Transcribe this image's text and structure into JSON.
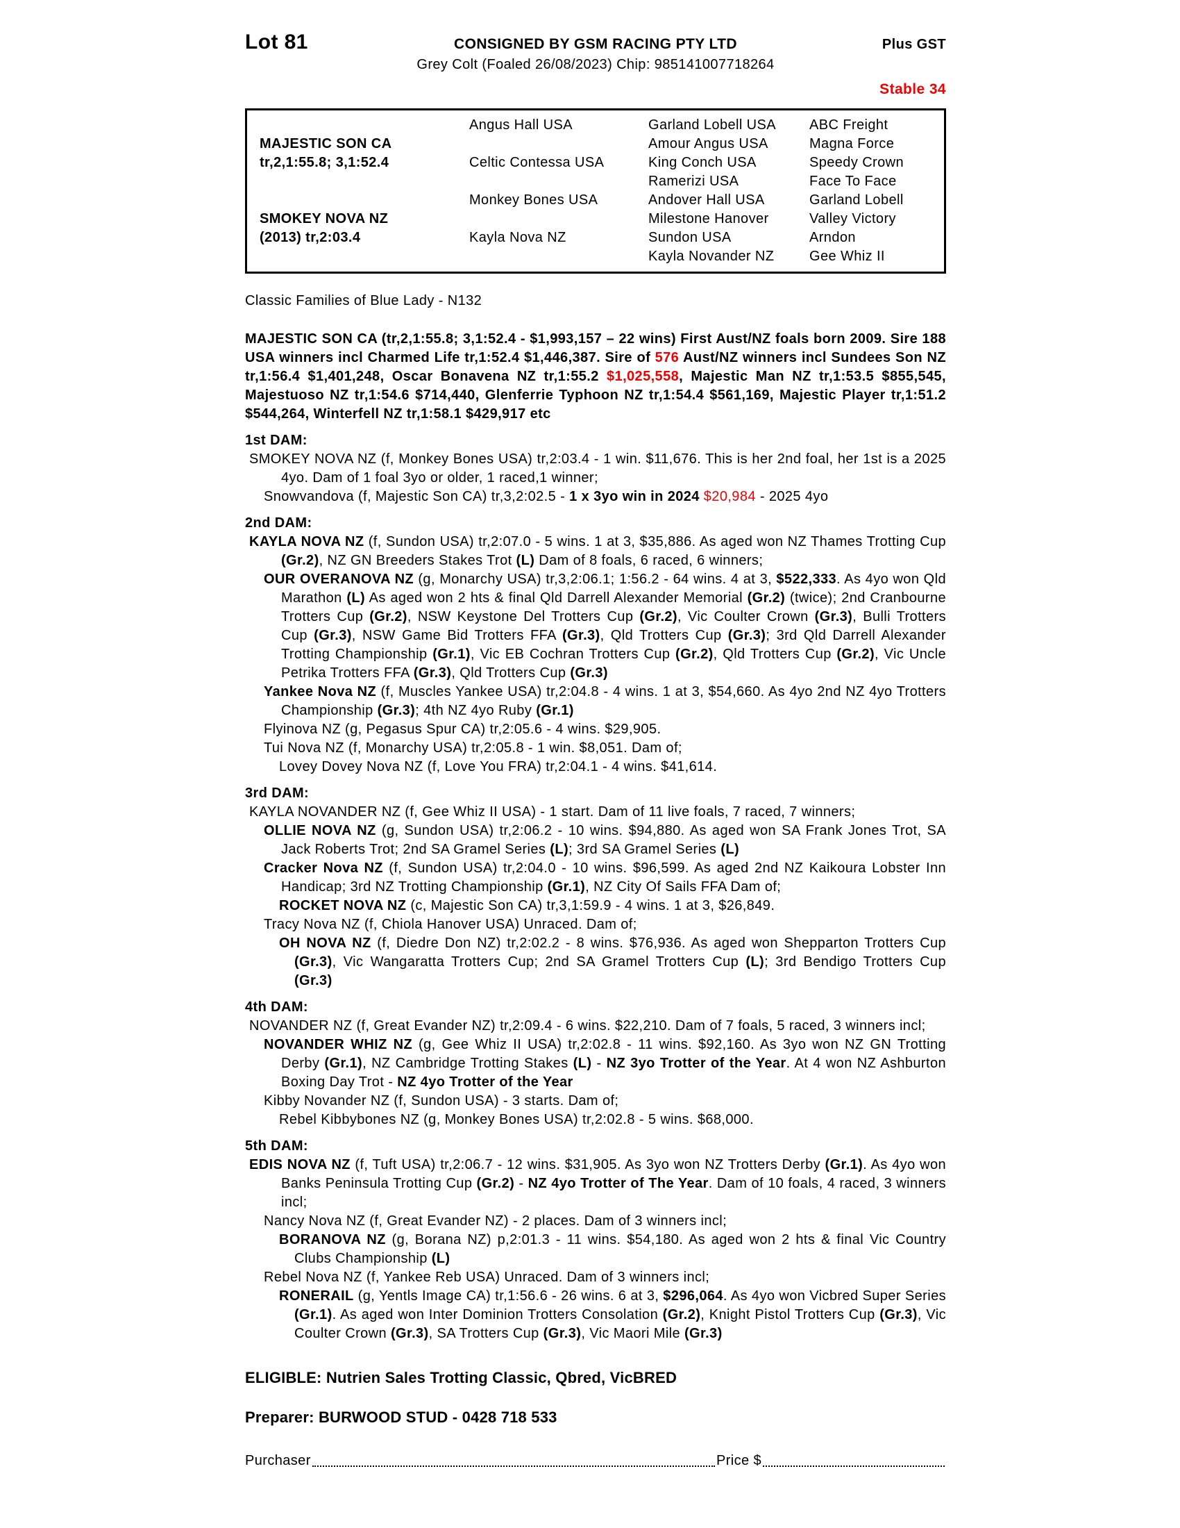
{
  "colors": {
    "accent_red": "#f20000"
  },
  "header": {
    "lot": "Lot 81",
    "consigned": "CONSIGNED BY GSM RACING PTY LTD",
    "description": "Grey Colt (Foaled 26/08/2023) Chip: 985141007718264",
    "plus_gst": "Plus GST",
    "stable": "Stable 34"
  },
  "pedigree_table": {
    "col1": [
      {
        "name": "MAJESTIC SON CA",
        "record": "tr,2,1:55.8; 3,1:52.4"
      },
      {
        "name": "SMOKEY NOVA NZ",
        "record": "(2013) tr,2:03.4"
      }
    ],
    "col2": [
      "Angus Hall USA",
      "Celtic Contessa USA",
      "Monkey Bones USA",
      "Kayla Nova NZ"
    ],
    "col3": [
      "Garland Lobell USA",
      "Amour Angus USA",
      "King Conch USA",
      "Ramerizi USA",
      "Andover Hall USA",
      "Milestone Hanover",
      "Sundon USA",
      "Kayla Novander NZ"
    ],
    "col4": [
      "ABC Freight",
      "Magna Force",
      "Speedy Crown",
      "Face To Face",
      "Garland Lobell",
      "Valley Victory",
      "Arndon",
      "Gee Whiz II"
    ]
  },
  "family_line": "Classic Families of Blue Lady - N132",
  "sire_paragraph": {
    "runs": [
      {
        "t": "MAJESTIC SON CA (tr,2,1:55.8; 3,1:52.4 - $1,993,157 – 22 wins) First Aust/NZ foals born 2009. Sire 188 USA winners incl Charmed Life tr,1:52.4 $1,446,387. Sire of ",
        "b": true
      },
      {
        "t": "576",
        "b": true,
        "r": true
      },
      {
        "t": " Aust/NZ winners incl Sundees Son NZ tr,1:56.4 $1,401,248, Oscar Bonavena NZ tr,1:55.2 ",
        "b": true
      },
      {
        "t": "$1,025,558",
        "b": true,
        "r": true
      },
      {
        "t": ", Majestic Man NZ tr,1:53.5 $855,545, Majestuoso NZ tr,1:54.6 $714,440, Glenferrie Typhoon NZ tr,1:54.4 $561,169, Majestic Player tr,1:51.2 $544,264, Winterfell NZ tr,1:58.1 $429,917 etc",
        "b": true
      }
    ]
  },
  "dam_sections": [
    {
      "title": "1st DAM:",
      "paragraphs": [
        {
          "level": "dam",
          "runs": [
            {
              "t": "SMOKEY NOVA NZ (f, Monkey Bones USA) tr,2:03.4 - 1 win. $11,676. This is her 2nd foal, her 1st is a 2025 4yo. Dam of 1 foal 3yo or older, 1 raced,1 winner;"
            }
          ]
        },
        {
          "level": "p1",
          "runs": [
            {
              "t": "Snowvandova (f, Majestic Son CA) tr,3,2:02.5 - "
            },
            {
              "t": "1 x 3yo win in 2024",
              "b": true
            },
            {
              "t": " "
            },
            {
              "t": "$20,984",
              "r": true
            },
            {
              "t": " - 2025 4yo"
            }
          ]
        }
      ]
    },
    {
      "title": "2nd DAM:",
      "paragraphs": [
        {
          "level": "dam",
          "runs": [
            {
              "t": "KAYLA NOVA NZ",
              "b": true
            },
            {
              "t": " (f, Sundon USA) tr,2:07.0 - 5 wins. 1 at 3, $35,886. As aged won NZ Thames Trotting Cup "
            },
            {
              "t": "(Gr.2)",
              "b": true
            },
            {
              "t": ", NZ GN Breeders Stakes Trot "
            },
            {
              "t": "(L)",
              "b": true
            },
            {
              "t": " Dam of 8 foals, 6 raced, 6 winners;"
            }
          ]
        },
        {
          "level": "p1",
          "runs": [
            {
              "t": "OUR OVERANOVA NZ",
              "b": true
            },
            {
              "t": " (g, Monarchy USA) tr,3,2:06.1; 1:56.2 - 64 wins. 4 at 3, "
            },
            {
              "t": "$522,333",
              "b": true
            },
            {
              "t": ". As 4yo won Qld Marathon "
            },
            {
              "t": "(L)",
              "b": true
            },
            {
              "t": " As aged won 2 hts & final Qld Darrell Alexander Memorial "
            },
            {
              "t": "(Gr.2)",
              "b": true
            },
            {
              "t": " (twice); 2nd Cranbourne Trotters Cup "
            },
            {
              "t": "(Gr.2)",
              "b": true
            },
            {
              "t": ", NSW Keystone Del Trotters Cup "
            },
            {
              "t": "(Gr.2)",
              "b": true
            },
            {
              "t": ", Vic Coulter Crown "
            },
            {
              "t": "(Gr.3)",
              "b": true
            },
            {
              "t": ", Bulli Trotters Cup "
            },
            {
              "t": "(Gr.3)",
              "b": true
            },
            {
              "t": ", NSW Game Bid Trotters FFA "
            },
            {
              "t": "(Gr.3)",
              "b": true
            },
            {
              "t": ", Qld Trotters Cup "
            },
            {
              "t": "(Gr.3)",
              "b": true
            },
            {
              "t": "; 3rd Qld Darrell Alexander Trotting Championship "
            },
            {
              "t": "(Gr.1)",
              "b": true
            },
            {
              "t": ", Vic EB Cochran Trotters Cup "
            },
            {
              "t": "(Gr.2)",
              "b": true
            },
            {
              "t": ", Qld Trotters Cup "
            },
            {
              "t": "(Gr.2)",
              "b": true
            },
            {
              "t": ", Vic Uncle Petrika Trotters FFA "
            },
            {
              "t": "(Gr.3)",
              "b": true
            },
            {
              "t": ", Qld Trotters Cup "
            },
            {
              "t": "(Gr.3)",
              "b": true
            }
          ]
        },
        {
          "level": "p1",
          "runs": [
            {
              "t": "Yankee Nova NZ",
              "b": true
            },
            {
              "t": " (f, Muscles Yankee USA) tr,2:04.8 - 4 wins. 1 at 3, $54,660. As 4yo 2nd NZ 4yo Trotters Championship "
            },
            {
              "t": "(Gr.3)",
              "b": true
            },
            {
              "t": "; 4th NZ 4yo Ruby "
            },
            {
              "t": "(Gr.1)",
              "b": true
            }
          ]
        },
        {
          "level": "p1",
          "runs": [
            {
              "t": "Flyinova NZ (g, Pegasus Spur CA) tr,2:05.6 - 4 wins. $29,905."
            }
          ]
        },
        {
          "level": "p1",
          "runs": [
            {
              "t": "Tui Nova NZ (f, Monarchy USA) tr,2:05.8 - 1 win. $8,051. Dam of;"
            }
          ]
        },
        {
          "level": "p2",
          "runs": [
            {
              "t": "Lovey Dovey Nova NZ (f, Love You FRA) tr,2:04.1 - 4 wins. $41,614."
            }
          ]
        }
      ]
    },
    {
      "title": "3rd DAM:",
      "paragraphs": [
        {
          "level": "dam",
          "runs": [
            {
              "t": "KAYLA NOVANDER NZ (f, Gee Whiz II USA) - 1 start. Dam of 11 live foals, 7 raced, 7 winners;"
            }
          ]
        },
        {
          "level": "p1",
          "runs": [
            {
              "t": "OLLIE NOVA NZ",
              "b": true
            },
            {
              "t": " (g, Sundon USA) tr,2:06.2 - 10 wins. $94,880. As aged won SA Frank Jones Trot, SA Jack Roberts Trot; 2nd SA Gramel Series "
            },
            {
              "t": "(L)",
              "b": true
            },
            {
              "t": "; 3rd SA Gramel Series "
            },
            {
              "t": "(L)",
              "b": true
            }
          ]
        },
        {
          "level": "p1",
          "runs": [
            {
              "t": "Cracker Nova NZ",
              "b": true
            },
            {
              "t": " (f, Sundon USA) tr,2:04.0 - 10 wins. $96,599. As aged 2nd NZ Kaikoura Lobster Inn Handicap; 3rd NZ Trotting Championship "
            },
            {
              "t": "(Gr.1)",
              "b": true
            },
            {
              "t": ", NZ City Of Sails FFA Dam of;"
            }
          ]
        },
        {
          "level": "p2",
          "runs": [
            {
              "t": "ROCKET NOVA NZ",
              "b": true
            },
            {
              "t": " (c, Majestic Son CA) tr,3,1:59.9 - 4 wins. 1 at 3, $26,849."
            }
          ]
        },
        {
          "level": "p1",
          "runs": [
            {
              "t": "Tracy Nova NZ (f, Chiola Hanover USA) Unraced. Dam of;"
            }
          ]
        },
        {
          "level": "p2",
          "runs": [
            {
              "t": "OH NOVA NZ",
              "b": true
            },
            {
              "t": " (f, Diedre Don NZ) tr,2:02.2 - 8 wins. $76,936. As aged won Shepparton Trotters Cup "
            },
            {
              "t": "(Gr.3)",
              "b": true
            },
            {
              "t": ", Vic Wangaratta Trotters Cup; 2nd SA Gramel Trotters Cup "
            },
            {
              "t": "(L)",
              "b": true
            },
            {
              "t": "; 3rd Bendigo Trotters Cup "
            },
            {
              "t": "(Gr.3)",
              "b": true
            }
          ]
        }
      ]
    },
    {
      "title": "4th DAM:",
      "paragraphs": [
        {
          "level": "dam",
          "runs": [
            {
              "t": "NOVANDER NZ (f, Great Evander NZ) tr,2:09.4 - 6 wins. $22,210. Dam of 7 foals, 5 raced, 3 winners incl;"
            }
          ]
        },
        {
          "level": "p1",
          "runs": [
            {
              "t": "NOVANDER WHIZ NZ",
              "b": true
            },
            {
              "t": " (g, Gee Whiz II USA) tr,2:02.8 - 11 wins. $92,160. As 3yo won NZ GN Trotting Derby "
            },
            {
              "t": "(Gr.1)",
              "b": true
            },
            {
              "t": ", NZ Cambridge Trotting Stakes "
            },
            {
              "t": "(L)",
              "b": true
            },
            {
              "t": " - "
            },
            {
              "t": "NZ 3yo Trotter of the Year",
              "b": true
            },
            {
              "t": ". At 4 won NZ Ashburton Boxing Day Trot - "
            },
            {
              "t": "NZ 4yo Trotter of the Year",
              "b": true
            }
          ]
        },
        {
          "level": "p1",
          "runs": [
            {
              "t": "Kibby Novander NZ (f, Sundon USA) - 3 starts. Dam of;"
            }
          ]
        },
        {
          "level": "p2",
          "runs": [
            {
              "t": "Rebel Kibbybones NZ (g, Monkey Bones USA) tr,2:02.8 - 5 wins. $68,000."
            }
          ]
        }
      ]
    },
    {
      "title": "5th DAM:",
      "paragraphs": [
        {
          "level": "dam",
          "runs": [
            {
              "t": "EDIS NOVA NZ",
              "b": true
            },
            {
              "t": " (f, Tuft USA) tr,2:06.7 - 12 wins. $31,905. As 3yo won NZ Trotters Derby "
            },
            {
              "t": "(Gr.1)",
              "b": true
            },
            {
              "t": ". As 4yo won Banks Peninsula Trotting Cup "
            },
            {
              "t": "(Gr.2)",
              "b": true
            },
            {
              "t": " - "
            },
            {
              "t": "NZ 4yo Trotter of The Year",
              "b": true
            },
            {
              "t": ". Dam of 10 foals, 4 raced, 3 winners incl;"
            }
          ]
        },
        {
          "level": "p1",
          "runs": [
            {
              "t": "Nancy Nova NZ (f, Great Evander NZ) - 2 places. Dam of 3 winners incl;"
            }
          ]
        },
        {
          "level": "p2",
          "runs": [
            {
              "t": "BORANOVA NZ",
              "b": true
            },
            {
              "t": " (g, Borana NZ) p,2:01.3 - 11 wins. $54,180. As aged won 2 hts & final Vic Country Clubs Championship "
            },
            {
              "t": "(L)",
              "b": true
            }
          ]
        },
        {
          "level": "p1",
          "runs": [
            {
              "t": "Rebel Nova NZ (f, Yankee Reb USA) Unraced. Dam of 3 winners incl;"
            }
          ]
        },
        {
          "level": "p2",
          "runs": [
            {
              "t": "RONERAIL",
              "b": true
            },
            {
              "t": " (g, Yentls Image CA) tr,1:56.6 - 26 wins. 6 at 3, "
            },
            {
              "t": "$296,064",
              "b": true
            },
            {
              "t": ". As 4yo won Vicbred Super Series "
            },
            {
              "t": "(Gr.1)",
              "b": true
            },
            {
              "t": ". As aged won Inter Dominion Trotters Consolation "
            },
            {
              "t": "(Gr.2)",
              "b": true
            },
            {
              "t": ", Knight Pistol Trotters Cup "
            },
            {
              "t": "(Gr.3)",
              "b": true
            },
            {
              "t": ", Vic Coulter Crown "
            },
            {
              "t": "(Gr.3)",
              "b": true
            },
            {
              "t": ", SA Trotters Cup "
            },
            {
              "t": "(Gr.3)",
              "b": true
            },
            {
              "t": ", Vic Maori Mile "
            },
            {
              "t": "(Gr.3)",
              "b": true
            }
          ]
        }
      ]
    }
  ],
  "footer": {
    "eligible": "ELIGIBLE: Nutrien Sales Trotting Classic, Qbred, VicBRED",
    "preparer": "Preparer: BURWOOD STUD - 0428 718 533",
    "purchaser_label": "Purchaser",
    "price_label": "Price $"
  }
}
